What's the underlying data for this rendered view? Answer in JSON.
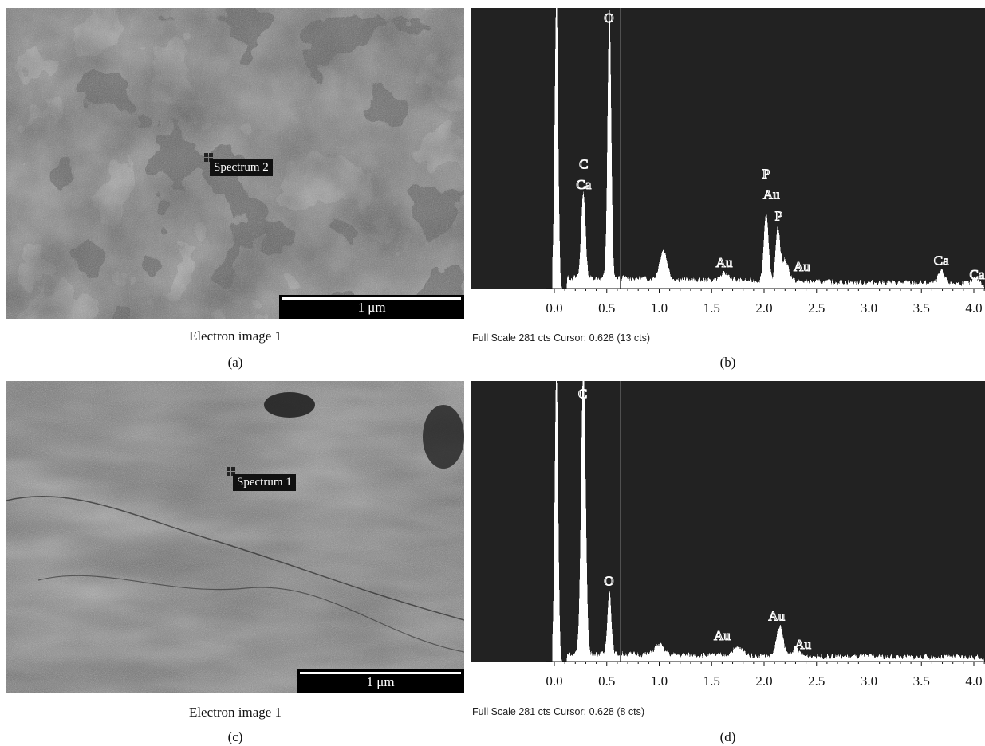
{
  "panels": {
    "a": {
      "caption": "(a)",
      "image_title": "Electron image 1",
      "spectrum_label": "Spectrum 2",
      "scale_label": "1 μm"
    },
    "b": {
      "caption": "(b)",
      "footer": "Full Scale 281 cts Cursor: 0.628  (13 cts)"
    },
    "c": {
      "caption": "(c)",
      "image_title": "Electron image 1",
      "spectrum_label": "Spectrum 1",
      "scale_label": "1 μm"
    },
    "d": {
      "caption": "(d)",
      "footer": "Full Scale 281 cts Cursor: 0.628  (8 cts)"
    }
  },
  "colors": {
    "plot_bg": "#222222",
    "spectrum_fill": "#ffffff",
    "sem_base": "#6e6e6e"
  },
  "chart_data": [
    {
      "id": "b",
      "type": "area",
      "title": "",
      "xlabel": "",
      "ylabel": "",
      "xlim": [
        -0.2,
        4.1
      ],
      "ylim": [
        0,
        281
      ],
      "x_ticks": [
        "0.0",
        "0.5",
        "1.0",
        "1.5",
        "2.0",
        "2.5",
        "3.0",
        "3.5",
        "4.0"
      ],
      "peaks": [
        {
          "x": 0.02,
          "height": 300,
          "width": 0.022
        },
        {
          "x": 0.277,
          "height": 90,
          "width": 0.028
        },
        {
          "x": 0.525,
          "height": 281,
          "width": 0.024
        },
        {
          "x": 1.04,
          "height": 30,
          "width": 0.05
        },
        {
          "x": 1.63,
          "height": 7,
          "width": 0.06
        },
        {
          "x": 2.02,
          "height": 72,
          "width": 0.03
        },
        {
          "x": 2.13,
          "height": 55,
          "width": 0.028
        },
        {
          "x": 2.2,
          "height": 22,
          "width": 0.05
        },
        {
          "x": 3.69,
          "height": 12,
          "width": 0.04
        },
        {
          "x": 4.02,
          "height": 5,
          "width": 0.04
        }
      ],
      "baseline": 8,
      "annotations": [
        {
          "text": "O",
          "x": 0.52,
          "y": 285
        },
        {
          "text": "C",
          "x": 0.28,
          "y": 123
        },
        {
          "text": "Ca",
          "x": 0.28,
          "y": 102
        },
        {
          "text": "P",
          "x": 2.02,
          "y": 113
        },
        {
          "text": "Au",
          "x": 2.07,
          "y": 92
        },
        {
          "text": "P",
          "x": 2.14,
          "y": 70
        },
        {
          "text": "Au",
          "x": 2.36,
          "y": 18
        },
        {
          "text": "Au",
          "x": 1.62,
          "y": 22
        },
        {
          "text": "Ca",
          "x": 3.69,
          "y": 24
        },
        {
          "text": "Ca",
          "x": 4.03,
          "y": 10
        }
      ],
      "cursor_x": 0.628
    },
    {
      "id": "d",
      "type": "area",
      "title": "",
      "xlabel": "",
      "ylabel": "",
      "xlim": [
        -0.2,
        4.1
      ],
      "ylim": [
        0,
        281
      ],
      "x_ticks": [
        "0.0",
        "0.5",
        "1.0",
        "1.5",
        "2.0",
        "2.5",
        "3.0",
        "3.5",
        "4.0"
      ],
      "peaks": [
        {
          "x": 0.02,
          "height": 300,
          "width": 0.022
        },
        {
          "x": 0.277,
          "height": 300,
          "width": 0.03
        },
        {
          "x": 0.525,
          "height": 66,
          "width": 0.026
        },
        {
          "x": 1.0,
          "height": 10,
          "width": 0.06
        },
        {
          "x": 1.75,
          "height": 8,
          "width": 0.07
        },
        {
          "x": 2.15,
          "height": 30,
          "width": 0.045
        },
        {
          "x": 2.3,
          "height": 8,
          "width": 0.05
        }
      ],
      "baseline": 5,
      "annotations": [
        {
          "text": "C",
          "x": 0.27,
          "y": 270
        },
        {
          "text": "O",
          "x": 0.52,
          "y": 78
        },
        {
          "text": "Au",
          "x": 2.12,
          "y": 42
        },
        {
          "text": "Au",
          "x": 1.6,
          "y": 22
        },
        {
          "text": "Au",
          "x": 2.37,
          "y": 13
        }
      ],
      "cursor_x": 0.628
    }
  ]
}
